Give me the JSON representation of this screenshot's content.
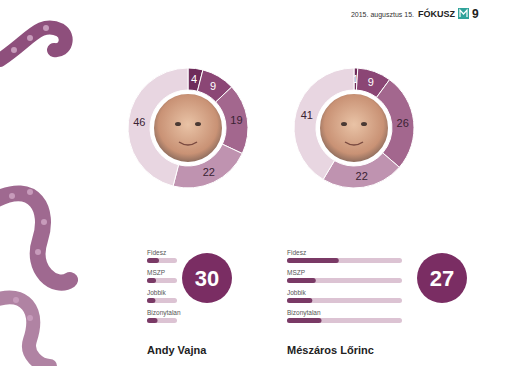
{
  "header": {
    "date": "2015. augusztus 15.",
    "magazine": "FÓKUSZ",
    "page": 9
  },
  "chart_data": [
    {
      "type": "pie",
      "title": "Andy Vajna",
      "values": [
        4,
        9,
        19,
        22,
        46
      ],
      "colors": [
        "#6e2c5a",
        "#8b4675",
        "#a3678e",
        "#bf93b0",
        "#e8d6e1"
      ],
      "data_labels": true
    },
    {
      "type": "bar",
      "orientation": "horizontal",
      "categories": [
        "Fidesz",
        "MSZP",
        "Jobbik",
        "Bizonytalan"
      ],
      "values": [
        40,
        30,
        28,
        35
      ],
      "xlim": [
        0,
        100
      ],
      "tick_labels": "y",
      "color": "#7a3a66",
      "score": 30
    },
    {
      "type": "pie",
      "title": "Mészáros Lőrinc",
      "values": [
        1,
        9,
        26,
        22,
        41
      ],
      "colors": [
        "#6e2c5a",
        "#8b4675",
        "#a3678e",
        "#bf93b0",
        "#e8d6e1"
      ],
      "data_labels": true
    },
    {
      "type": "bar",
      "orientation": "horizontal",
      "categories": [
        "Fidesz",
        "MSZP",
        "Jobbik",
        "Bizonytalan"
      ],
      "values": [
        45,
        25,
        22,
        30
      ],
      "xlim": [
        0,
        100
      ],
      "tick_labels": "y",
      "color": "#7a3a66",
      "score": 27
    }
  ]
}
